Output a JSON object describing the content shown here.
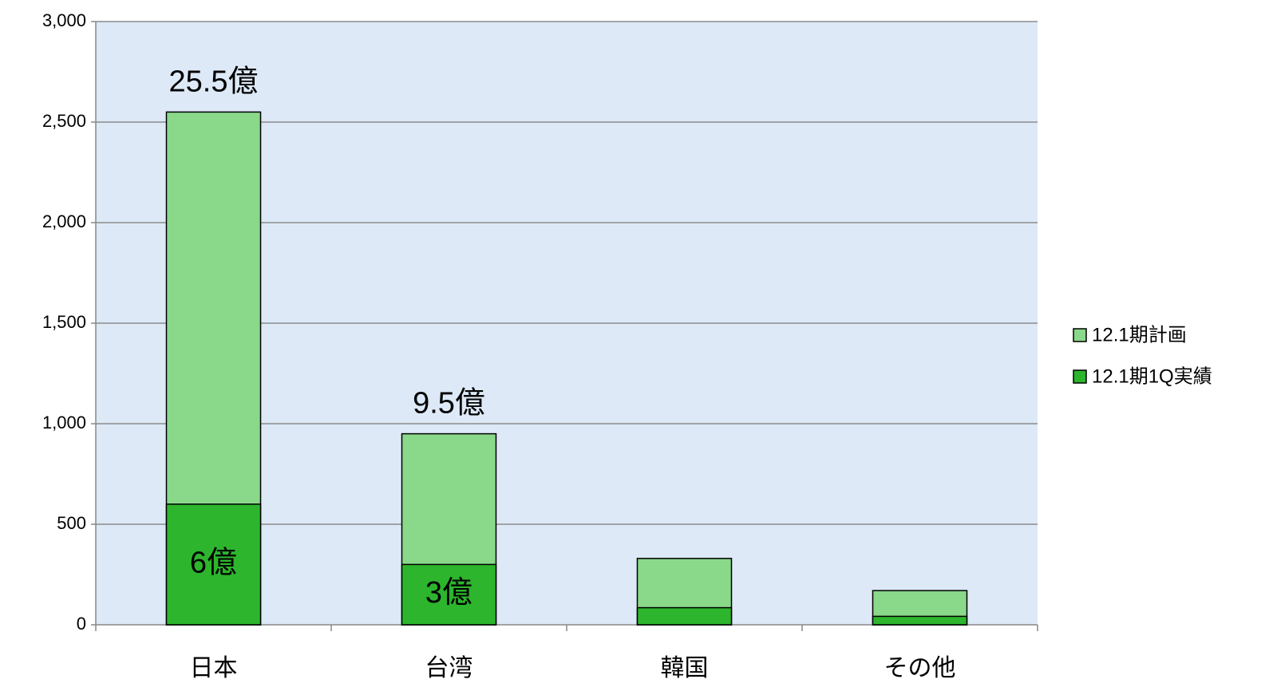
{
  "chart_data": {
    "type": "bar",
    "overlap": true,
    "categories": [
      "日本",
      "台湾",
      "韓国",
      "その他"
    ],
    "series": [
      {
        "name": "12.1期計画",
        "color": "#8ad88a",
        "values": [
          2550,
          950,
          330,
          170
        ],
        "value_labels": [
          "25.5億",
          "9.5億",
          null,
          null
        ]
      },
      {
        "name": "12.1期1Q実績",
        "color": "#2db52d",
        "values": [
          600,
          300,
          85,
          42
        ],
        "value_labels": [
          "6億",
          "3億",
          null,
          null
        ]
      }
    ],
    "ylim": [
      0,
      3000
    ],
    "yticks": [
      0,
      500,
      {
        "value": 1000,
        "label": "1,000"
      },
      {
        "value": 1500,
        "label": "1,500"
      },
      {
        "value": 2000,
        "label": "2,000"
      },
      {
        "value": 2500,
        "label": "2,500"
      },
      {
        "value": 3000,
        "label": "3,000"
      }
    ],
    "grid": true,
    "legend": "right"
  }
}
